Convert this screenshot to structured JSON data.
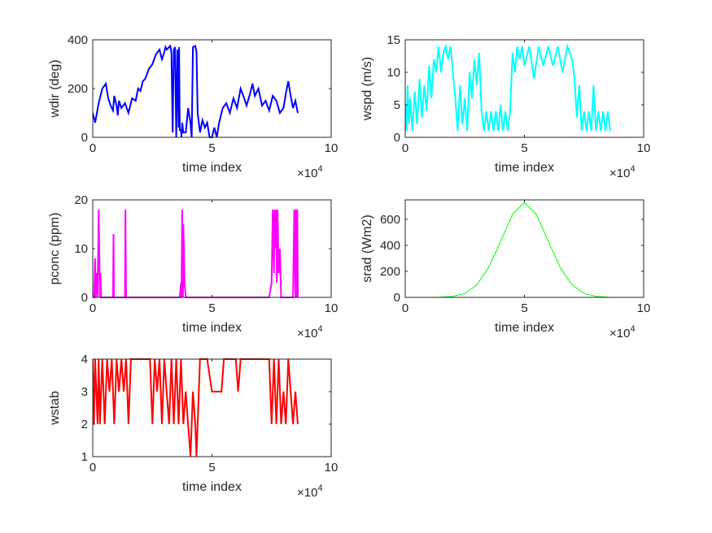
{
  "figure": {
    "background": "#ffffff",
    "multiplier_prefix": "×10",
    "multiplier_exponent": "4"
  },
  "chart_data": [
    {
      "id": "wdir",
      "type": "line",
      "color": "#0000ff",
      "line_weight": "bold",
      "xlabel": "time index",
      "ylabel": "wdir (deg)",
      "xlim": [
        0,
        10
      ],
      "ylim": [
        0,
        400
      ],
      "xticks": [
        "0",
        "5",
        "10"
      ],
      "yticks": [
        "0",
        "200",
        "400"
      ],
      "x_multiplier": "×10^4",
      "x": [
        0,
        0.1,
        0.25,
        0.4,
        0.55,
        0.65,
        0.75,
        0.85,
        0.9,
        1.0,
        1.05,
        1.1,
        1.2,
        1.35,
        1.5,
        1.65,
        1.8,
        1.9,
        2.0,
        2.1,
        2.2,
        2.35,
        2.5,
        2.65,
        2.8,
        2.9,
        3.0,
        3.05,
        3.1,
        3.25,
        3.3,
        3.35,
        3.4,
        3.45,
        3.5,
        3.55,
        3.6,
        3.62,
        3.65,
        3.7,
        3.72,
        3.75,
        3.8,
        3.9,
        4.0,
        4.1,
        4.15,
        4.2,
        4.3,
        4.35,
        4.4,
        4.5,
        4.6,
        4.7,
        4.8,
        4.9,
        5.0,
        5.1,
        5.2,
        5.3,
        5.45,
        5.6,
        5.75,
        5.9,
        6.05,
        6.2,
        6.35,
        6.45,
        6.6,
        6.7,
        6.8,
        6.95,
        7.1,
        7.25,
        7.4,
        7.55,
        7.7,
        7.85,
        8.0,
        8.1,
        8.2,
        8.3,
        8.4,
        8.5,
        8.6
      ],
      "y": [
        100,
        60,
        140,
        200,
        220,
        160,
        130,
        110,
        170,
        130,
        90,
        150,
        120,
        140,
        100,
        160,
        150,
        200,
        190,
        230,
        240,
        280,
        300,
        340,
        360,
        320,
        350,
        370,
        360,
        375,
        350,
        20,
        360,
        370,
        0,
        360,
        40,
        370,
        30,
        30,
        0,
        60,
        20,
        20,
        120,
        60,
        0,
        370,
        375,
        350,
        100,
        20,
        70,
        40,
        60,
        0,
        0,
        40,
        0,
        60,
        120,
        140,
        100,
        160,
        120,
        200,
        160,
        130,
        180,
        220,
        170,
        200,
        130,
        150,
        110,
        170,
        150,
        100,
        120,
        180,
        230,
        170,
        120,
        150,
        100
      ]
    },
    {
      "id": "wspd",
      "type": "line",
      "color": "#00ffff",
      "line_weight": "bold",
      "xlabel": "time index",
      "ylabel": "wspd (m/s)",
      "xlim": [
        0,
        10
      ],
      "ylim": [
        0,
        15
      ],
      "xticks": [
        "0",
        "5",
        "10"
      ],
      "yticks": [
        "0",
        "5",
        "10",
        "15"
      ],
      "x_multiplier": "×10^4",
      "x": [
        0,
        0.05,
        0.1,
        0.15,
        0.2,
        0.3,
        0.4,
        0.5,
        0.6,
        0.7,
        0.8,
        0.9,
        1.0,
        1.1,
        1.2,
        1.3,
        1.4,
        1.5,
        1.6,
        1.7,
        1.8,
        1.9,
        2.0,
        2.1,
        2.2,
        2.3,
        2.4,
        2.5,
        2.6,
        2.7,
        2.8,
        2.9,
        3.0,
        3.1,
        3.2,
        3.3,
        3.4,
        3.5,
        3.6,
        3.7,
        3.8,
        3.9,
        4.0,
        4.1,
        4.2,
        4.3,
        4.4,
        4.5,
        4.6,
        4.7,
        4.8,
        4.9,
        5.0,
        5.2,
        5.4,
        5.6,
        5.8,
        6.0,
        6.2,
        6.4,
        6.6,
        6.8,
        7.0,
        7.1,
        7.2,
        7.3,
        7.4,
        7.5,
        7.6,
        7.7,
        7.8,
        7.9,
        8.0,
        8.1,
        8.2,
        8.3,
        8.4,
        8.5,
        8.6
      ],
      "y": [
        5,
        1,
        8,
        2,
        6,
        1,
        7,
        2,
        9,
        3,
        8,
        4,
        11,
        6,
        12,
        10,
        14,
        10,
        13,
        14,
        12,
        14,
        10,
        6,
        1,
        8,
        2,
        6,
        1,
        10,
        6,
        12,
        8,
        13,
        4,
        1,
        4,
        1,
        4,
        1,
        4,
        1,
        5,
        1,
        4,
        1,
        4,
        13,
        10,
        14,
        12,
        14,
        11,
        14,
        9,
        14,
        11,
        14,
        11,
        14,
        10,
        14,
        12,
        9,
        3,
        8,
        1,
        4,
        1,
        4,
        1,
        8,
        1,
        4,
        1,
        4,
        1,
        4,
        1
      ]
    },
    {
      "id": "pconc",
      "type": "line",
      "color": "#ff00ff",
      "line_weight": "bold",
      "xlabel": "time index",
      "ylabel": "pconc (ppm)",
      "xlim": [
        0,
        10
      ],
      "ylim": [
        0,
        20
      ],
      "xticks": [
        "0",
        "5",
        "10"
      ],
      "yticks": [
        "0",
        "10",
        "20"
      ],
      "x_multiplier": "×10^4",
      "x": [
        0,
        0.05,
        0.1,
        0.12,
        0.15,
        0.2,
        0.25,
        0.3,
        0.32,
        0.35,
        0.4,
        0.6,
        0.85,
        0.87,
        0.89,
        0.92,
        1.0,
        1.35,
        1.37,
        1.4,
        1.42,
        1.5,
        2.0,
        3.0,
        3.5,
        3.65,
        3.7,
        3.72,
        3.75,
        3.78,
        3.8,
        3.85,
        3.9,
        4.0,
        5.0,
        6.0,
        7.0,
        7.4,
        7.5,
        7.55,
        7.6,
        7.62,
        7.65,
        7.7,
        7.72,
        7.75,
        7.8,
        7.85,
        7.9,
        7.95,
        8.0,
        8.2,
        8.4,
        8.45,
        8.5,
        8.52,
        8.55,
        8.58,
        8.6
      ],
      "y": [
        0,
        0,
        8,
        0,
        5,
        0,
        18,
        0,
        5,
        0,
        0,
        0,
        0,
        13,
        0,
        0,
        0,
        0,
        18,
        0,
        0,
        0,
        0,
        0,
        0,
        0,
        3,
        0,
        18,
        0,
        15,
        3,
        0,
        0,
        0,
        0,
        0,
        0,
        3,
        18,
        5,
        18,
        10,
        18,
        3,
        18,
        5,
        10,
        0,
        0,
        0,
        0,
        0,
        18,
        0,
        18,
        0,
        18,
        0
      ]
    },
    {
      "id": "srad",
      "type": "line",
      "color": "#00ff00",
      "line_weight": "thin",
      "xlabel": "time index",
      "ylabel": "srad (Wm2)",
      "xlim": [
        0,
        10
      ],
      "ylim": [
        0,
        750
      ],
      "xticks": [
        "0",
        "5",
        "10"
      ],
      "yticks": [
        "0",
        "200",
        "400",
        "600"
      ],
      "x_multiplier": "×10^4",
      "peak_x": 5,
      "peak_y": 730,
      "x": [
        0,
        0.5,
        1.0,
        1.5,
        2.0,
        2.5,
        3.0,
        3.5,
        4.0,
        4.5,
        5.0,
        5.5,
        6.0,
        6.5,
        7.0,
        7.5,
        8.0,
        8.5,
        8.6
      ],
      "y": [
        0,
        0,
        0,
        2,
        8,
        30,
        95,
        230,
        430,
        640,
        730,
        640,
        430,
        230,
        95,
        30,
        8,
        2,
        0
      ]
    },
    {
      "id": "wstab",
      "type": "line",
      "color": "#ff0000",
      "line_weight": "bold",
      "xlabel": "time index",
      "ylabel": "wstab",
      "xlim": [
        0,
        10
      ],
      "ylim": [
        1,
        4
      ],
      "xticks": [
        "0",
        "5",
        "10"
      ],
      "yticks": [
        "1",
        "2",
        "3",
        "4"
      ],
      "x_multiplier": "×10^4",
      "x": [
        0,
        0.05,
        0.1,
        0.15,
        0.2,
        0.25,
        0.3,
        0.4,
        0.5,
        0.6,
        0.7,
        0.8,
        0.9,
        1.0,
        1.1,
        1.2,
        1.3,
        1.4,
        1.5,
        1.6,
        1.7,
        1.8,
        1.9,
        2.0,
        2.1,
        2.2,
        2.3,
        2.4,
        2.5,
        2.6,
        2.7,
        2.8,
        2.9,
        3.0,
        3.1,
        3.2,
        3.3,
        3.4,
        3.5,
        3.6,
        3.7,
        3.8,
        3.9,
        4.0,
        4.1,
        4.2,
        4.3,
        4.35,
        4.4,
        4.5,
        4.6,
        4.7,
        4.8,
        5.0,
        5.2,
        5.4,
        5.5,
        5.6,
        5.8,
        6.0,
        6.1,
        6.2,
        6.4,
        6.6,
        6.8,
        7.0,
        7.2,
        7.4,
        7.5,
        7.6,
        7.7,
        7.8,
        7.9,
        8.0,
        8.1,
        8.2,
        8.3,
        8.4,
        8.5,
        8.6
      ],
      "y": [
        4,
        2,
        4,
        3,
        2,
        4,
        2,
        4,
        2,
        4,
        3,
        4,
        2,
        4,
        3,
        4,
        3,
        4,
        2,
        4,
        4,
        4,
        4,
        4,
        4,
        4,
        4,
        4,
        2,
        4,
        3,
        4,
        2,
        4,
        3,
        2,
        4,
        2,
        4,
        2,
        4,
        2,
        3,
        2,
        1,
        3,
        2,
        1,
        2,
        4,
        4,
        4,
        4,
        3,
        3,
        3,
        4,
        4,
        4,
        4,
        3,
        4,
        4,
        4,
        4,
        4,
        4,
        4,
        2,
        4,
        2,
        4,
        2,
        3,
        2,
        4,
        3,
        2,
        3,
        2
      ]
    }
  ]
}
